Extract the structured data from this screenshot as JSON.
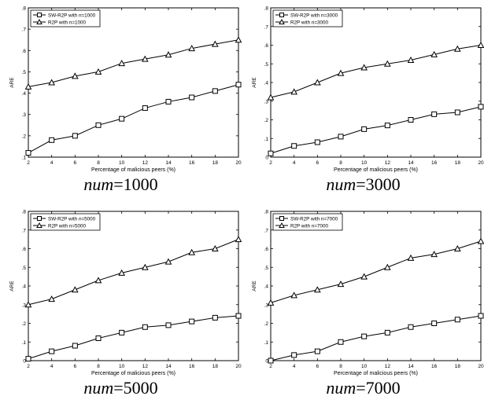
{
  "chart_data": [
    {
      "type": "line",
      "caption_var": "num",
      "caption_eq": "=1000",
      "xlabel": "Percentage of malicious peers (%)",
      "ylabel": "ARE",
      "xlim": [
        2,
        20
      ],
      "ylim": [
        0.1,
        0.8
      ],
      "xticks": [
        2,
        4,
        6,
        8,
        10,
        12,
        14,
        16,
        18,
        20
      ],
      "yticks": [
        0.1,
        0.2,
        0.3,
        0.4,
        0.5,
        0.6,
        0.7,
        0.8
      ],
      "legend_position": "top-left",
      "grid": false,
      "x": [
        2,
        4,
        6,
        8,
        10,
        12,
        14,
        16,
        18,
        20
      ],
      "series": [
        {
          "name": "SW-R2P with n=1000",
          "marker": "square",
          "values": [
            0.12,
            0.18,
            0.2,
            0.25,
            0.28,
            0.33,
            0.36,
            0.38,
            0.41,
            0.44
          ]
        },
        {
          "name": "R2P with n=1000",
          "marker": "triangle",
          "values": [
            0.43,
            0.45,
            0.48,
            0.5,
            0.54,
            0.56,
            0.58,
            0.61,
            0.63,
            0.65
          ]
        }
      ]
    },
    {
      "type": "line",
      "caption_var": "num",
      "caption_eq": "=3000",
      "xlabel": "Percentage of malicious peers (%)",
      "ylabel": "ARE",
      "xlim": [
        2,
        20
      ],
      "ylim": [
        0,
        0.8
      ],
      "xticks": [
        2,
        4,
        6,
        8,
        10,
        12,
        14,
        16,
        18,
        20
      ],
      "yticks": [
        0,
        0.1,
        0.2,
        0.3,
        0.4,
        0.5,
        0.6,
        0.7,
        0.8
      ],
      "legend_position": "top-left",
      "grid": false,
      "x": [
        2,
        4,
        6,
        8,
        10,
        12,
        14,
        16,
        18,
        20
      ],
      "series": [
        {
          "name": "SW-R2P with n=3000",
          "marker": "square",
          "values": [
            0.02,
            0.06,
            0.08,
            0.11,
            0.15,
            0.17,
            0.2,
            0.23,
            0.24,
            0.27
          ]
        },
        {
          "name": "R2P with n=3000",
          "marker": "triangle",
          "values": [
            0.32,
            0.35,
            0.4,
            0.45,
            0.48,
            0.5,
            0.52,
            0.55,
            0.58,
            0.6
          ]
        }
      ]
    },
    {
      "type": "line",
      "caption_var": "num",
      "caption_eq": "=5000",
      "xlabel": "Percentage of malicious peers (%)",
      "ylabel": "ARE",
      "xlim": [
        2,
        20
      ],
      "ylim": [
        0,
        0.8
      ],
      "xticks": [
        2,
        4,
        6,
        8,
        10,
        12,
        14,
        16,
        18,
        20
      ],
      "yticks": [
        0,
        0.1,
        0.2,
        0.3,
        0.4,
        0.5,
        0.6,
        0.7,
        0.8
      ],
      "legend_position": "top-left",
      "grid": false,
      "x": [
        2,
        4,
        6,
        8,
        10,
        12,
        14,
        16,
        18,
        20
      ],
      "series": [
        {
          "name": "SW-R2P with n=5000",
          "marker": "square",
          "values": [
            0.01,
            0.05,
            0.08,
            0.12,
            0.15,
            0.18,
            0.19,
            0.21,
            0.23,
            0.24
          ]
        },
        {
          "name": "R2P with n=5000",
          "marker": "triangle",
          "values": [
            0.3,
            0.33,
            0.38,
            0.43,
            0.47,
            0.5,
            0.53,
            0.58,
            0.6,
            0.65
          ]
        }
      ]
    },
    {
      "type": "line",
      "caption_var": "num",
      "caption_eq": "=7000",
      "xlabel": "Percentage of malicious peers (%)",
      "ylabel": "ARE",
      "xlim": [
        2,
        20
      ],
      "ylim": [
        0,
        0.8
      ],
      "xticks": [
        2,
        4,
        6,
        8,
        10,
        12,
        14,
        16,
        18,
        20
      ],
      "yticks": [
        0,
        0.1,
        0.2,
        0.3,
        0.4,
        0.5,
        0.6,
        0.7,
        0.8
      ],
      "legend_position": "top-left",
      "grid": false,
      "x": [
        2,
        4,
        6,
        8,
        10,
        12,
        14,
        16,
        18,
        20
      ],
      "series": [
        {
          "name": "SW-R2P with n=7000",
          "marker": "square",
          "values": [
            0.0,
            0.03,
            0.05,
            0.1,
            0.13,
            0.15,
            0.18,
            0.2,
            0.22,
            0.24
          ]
        },
        {
          "name": "R2P with n=7000",
          "marker": "triangle",
          "values": [
            0.31,
            0.35,
            0.38,
            0.41,
            0.45,
            0.5,
            0.55,
            0.57,
            0.6,
            0.64
          ]
        }
      ]
    }
  ]
}
